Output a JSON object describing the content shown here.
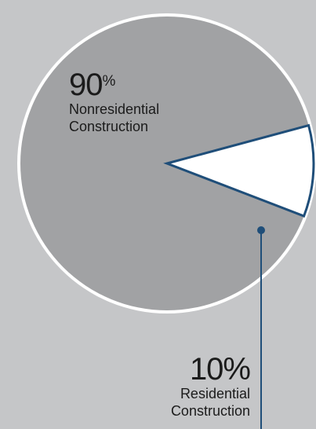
{
  "chart_data": {
    "type": "pie",
    "slices": [
      {
        "value": 90,
        "value_text": "90",
        "unit": "%",
        "label_line1": "Nonresidential",
        "label_line2": "Construction",
        "color": "#a1a2a4"
      },
      {
        "value": 10,
        "value_text": "10%",
        "label_line1": "Residential",
        "label_line2": "Construction",
        "color": "#ffffff",
        "outline_color": "#1f4e79"
      }
    ],
    "background_color": "#c5c6c8",
    "pie_border_color": "#ffffff",
    "callout_color": "#1f4e79"
  }
}
